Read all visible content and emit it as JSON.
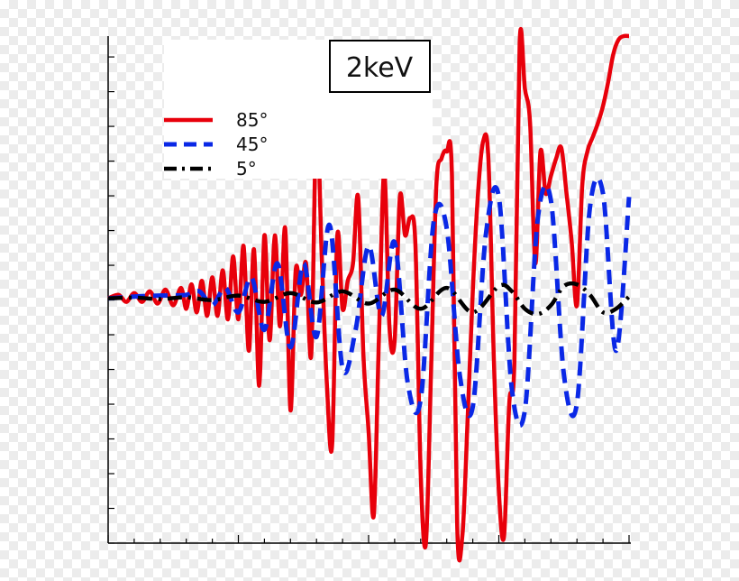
{
  "chart_data": {
    "type": "line",
    "title": "2keV",
    "xlabel": "",
    "ylabel": "",
    "xlim": [
      0,
      10
    ],
    "ylim": [
      -7,
      7.5
    ],
    "legend_position": "top-left",
    "series": [
      {
        "name": "85°",
        "color": "#e8000b",
        "style": "solid",
        "x": [
          0,
          0.2,
          0.35,
          0.5,
          0.65,
          0.8,
          0.95,
          1.1,
          1.25,
          1.4,
          1.5,
          1.6,
          1.7,
          1.8,
          1.9,
          2.0,
          2.1,
          2.2,
          2.3,
          2.4,
          2.5,
          2.6,
          2.7,
          2.8,
          2.9,
          3.0,
          3.1,
          3.2,
          3.3,
          3.4,
          3.5,
          3.6,
          3.7,
          3.8,
          3.9,
          4.0,
          4.1,
          4.2,
          4.3,
          4.4,
          4.5,
          4.6,
          4.7,
          4.8,
          4.9,
          5.0,
          5.1,
          5.2,
          5.3,
          5.4,
          5.5,
          5.6,
          5.7,
          5.8,
          5.9,
          6.0,
          6.1,
          6.2,
          6.3,
          6.4,
          6.5,
          6.6,
          6.7,
          6.8,
          6.9,
          7.0,
          7.1,
          7.2,
          7.3,
          7.4,
          7.5,
          7.6,
          7.7,
          7.8,
          7.9,
          8.0,
          8.1,
          8.2,
          8.3,
          8.4,
          8.5,
          8.6,
          8.7,
          8.8,
          8.9,
          9.0,
          9.1,
          9.2,
          9.3,
          9.4,
          9.5,
          9.6,
          9.7,
          9.8,
          9.9,
          10.0
        ],
        "y": [
          0,
          0.1,
          -0.1,
          0.15,
          -0.1,
          0.2,
          -0.15,
          0.25,
          -0.2,
          0.3,
          -0.3,
          0.4,
          -0.4,
          0.5,
          -0.5,
          0.6,
          -0.5,
          0.8,
          -0.6,
          1.2,
          -0.6,
          1.5,
          -1.5,
          1.4,
          -2.5,
          1.8,
          -1.2,
          1.8,
          -0.8,
          2.0,
          -3.2,
          0.8,
          0.1,
          1.0,
          -1.6,
          5.2,
          1.2,
          -2.5,
          -4.2,
          1.8,
          -0.3,
          0.5,
          1.0,
          2.9,
          -1.6,
          -3.8,
          -6.2,
          -1.0,
          3.6,
          -0.8,
          -1.2,
          2.9,
          1.8,
          2.3,
          1.5,
          -5.0,
          -7.0,
          -2.0,
          3.2,
          4.0,
          4.2,
          3.5,
          -6.5,
          -6.8,
          -3.5,
          0.2,
          3.0,
          4.5,
          4.0,
          -1.5,
          -5.5,
          -6.8,
          -3.0,
          -1.8,
          7.3,
          6.0,
          5.0,
          1.0,
          4.2,
          3.0,
          3.5,
          4.0,
          4.3,
          3.0,
          1.6,
          -0.2,
          3.2,
          4.2,
          4.6,
          5.0,
          5.5,
          6.2,
          7.0,
          7.4,
          7.5,
          7.5
        ]
      },
      {
        "name": "45°",
        "color": "#0a28e6",
        "style": "dashed",
        "x": [
          0,
          0.5,
          1.0,
          1.5,
          1.75,
          2.0,
          2.25,
          2.5,
          2.75,
          3.0,
          3.25,
          3.5,
          3.75,
          4.0,
          4.25,
          4.5,
          4.75,
          5.0,
          5.25,
          5.5,
          5.75,
          6.0,
          6.25,
          6.5,
          6.75,
          7.0,
          7.25,
          7.5,
          7.75,
          8.0,
          8.25,
          8.5,
          8.75,
          9.0,
          9.25,
          9.5,
          9.75,
          10.0
        ],
        "y": [
          0,
          0.05,
          0.08,
          0.1,
          0.2,
          -0.2,
          0.3,
          -0.4,
          0.6,
          -0.9,
          1.0,
          -1.4,
          1.0,
          -1.1,
          2.1,
          -2.0,
          -0.9,
          1.5,
          -0.5,
          1.6,
          -2.4,
          -2.9,
          2.2,
          2.0,
          -2.2,
          -3.1,
          1.8,
          2.9,
          -2.6,
          -3.2,
          2.3,
          2.8,
          -2.2,
          -3.0,
          2.6,
          3.0,
          -1.5,
          2.9
        ]
      },
      {
        "name": "5°",
        "color": "#000000",
        "style": "dashdot",
        "x": [
          0,
          0.5,
          1.0,
          1.5,
          2.0,
          2.5,
          3.0,
          3.5,
          4.0,
          4.5,
          5.0,
          5.5,
          6.0,
          6.5,
          7.0,
          7.5,
          7.75,
          8.0,
          8.25,
          8.5,
          8.75,
          9.0,
          9.25,
          9.5,
          9.75,
          10.0
        ],
        "y": [
          0,
          0.02,
          -0.02,
          0.03,
          -0.05,
          0.08,
          -0.1,
          0.15,
          -0.12,
          0.2,
          -0.15,
          0.25,
          -0.3,
          0.3,
          -0.4,
          0.35,
          0.2,
          -0.3,
          -0.45,
          -0.2,
          0.35,
          0.4,
          0.1,
          -0.4,
          -0.3,
          0.05
        ]
      }
    ]
  }
}
